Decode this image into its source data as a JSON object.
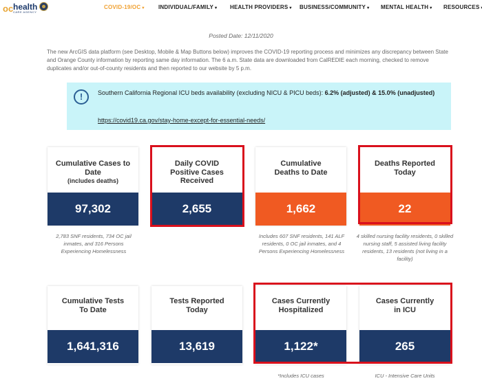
{
  "nav": {
    "logo": {
      "word": "health",
      "sub": "CARE AGENCY"
    },
    "items": [
      {
        "label": "COVID-19/OC",
        "active": true
      },
      {
        "label": "INDIVIDUAL/FAMILY"
      },
      {
        "label": "HEALTH PROVIDERS"
      },
      {
        "label": "BUSINESS/COMMUNITY"
      },
      {
        "label": "MENTAL HEALTH"
      },
      {
        "label": "RESOURCES"
      }
    ],
    "caret": "▾"
  },
  "posted": "Posted Date: 12/11/2020",
  "intro": "The new ArcGIS data platform (see Desktop, Mobile & Map Buttons below) improves the COVID-19 reporting process and minimizes any discrepancy between State and Orange County information by reporting same day information. The 6 a.m. State data are downloaded from CalREDIE each morning, checked to remove duplicates and/or out-of-county residents and then reported to our website by 5 p.m.",
  "notice": {
    "icon": "!",
    "text_prefix": "Southern California Regional ICU beds availability (excluding NICU & PICU beds): ",
    "text_bold": "6.2% (adjusted) & 15.0%",
    "text_bold2": "(unadjusted)",
    "link": "https://covid19.ca.gov/stay-home-except-for-essential-needs/"
  },
  "cards": {
    "cumulative_cases": {
      "label": "Cumulative Cases to Date",
      "sub": "(includes deaths)",
      "value": "97,302",
      "note": "2,783 SNF residents, 734 OC jail inmates, and 316 Persons Experiencing Homelessness"
    },
    "daily_cases": {
      "label": "Daily COVID Positive Cases Received",
      "value": "2,655"
    },
    "cumulative_deaths": {
      "label": "Cumulative Deaths to Date",
      "value": "1,662",
      "note": "Includes 607 SNF residents, 141 ALF residents, 0 OC jail inmates, and 4 Persons Experiencing Homelessness"
    },
    "deaths_today": {
      "label": "Deaths Reported Today",
      "value": "22",
      "note": "4 skilled nursing facility residents, 0 skilled nursing staff, 5 assisted living facility residents, 13 residents (not living in a facility)"
    },
    "cumulative_tests": {
      "label": "Cumulative Tests To Date",
      "value": "1,641,316"
    },
    "tests_today": {
      "label": "Tests Reported Today",
      "value": "13,619"
    },
    "hospitalized": {
      "label": "Cases Currently Hospitalized",
      "value": "1,122*",
      "note": "*Includes ICU cases"
    },
    "icu": {
      "label": "Cases Currently in ICU",
      "value": "265",
      "note": "ICU - Intensive Care Units"
    }
  },
  "colors": {
    "blue": "#1e3a68",
    "orange": "#f05a22",
    "highlight": "#d9101c",
    "notice_bg": "#c9f4f9",
    "active_nav": "#f0a030"
  }
}
